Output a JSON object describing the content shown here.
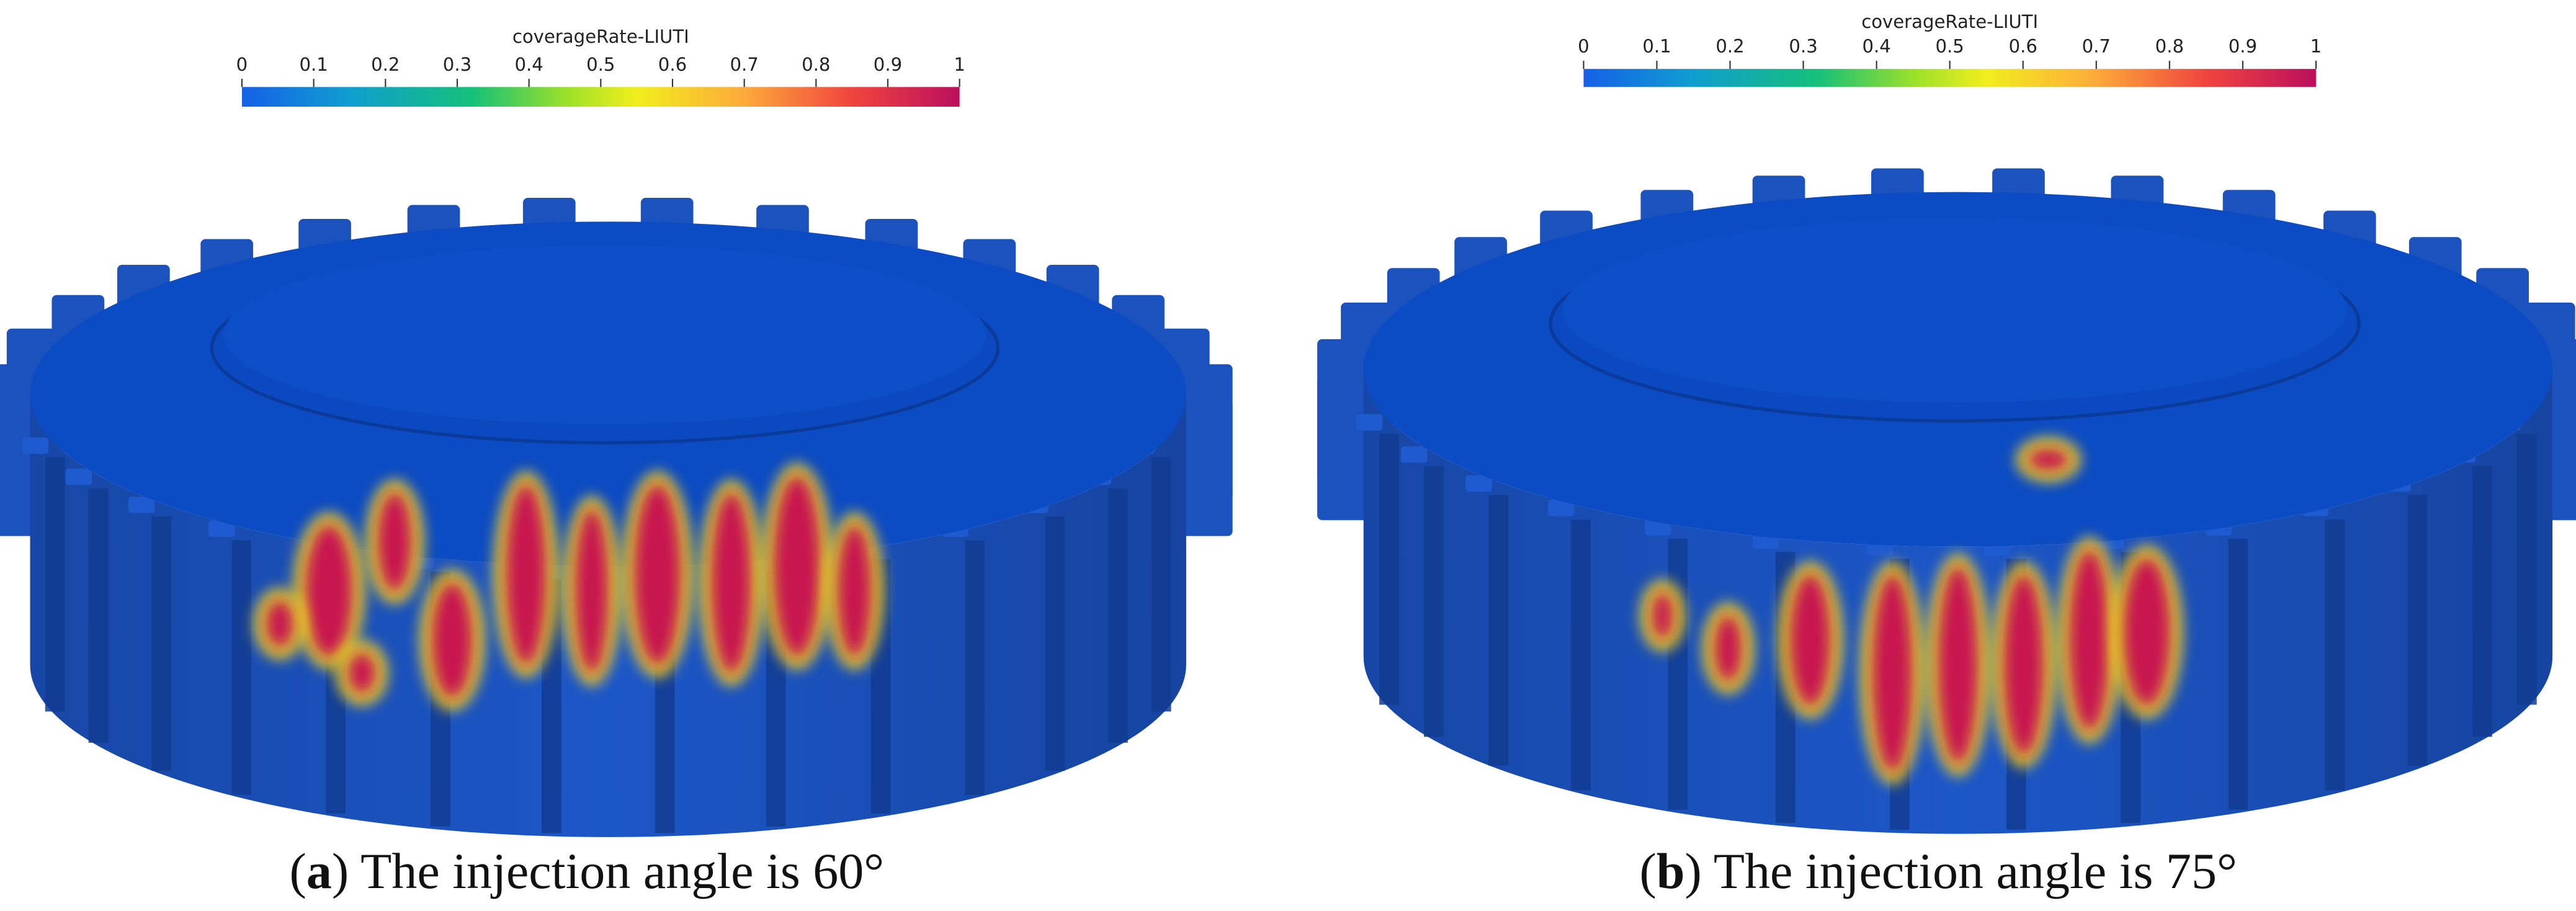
{
  "panels": [
    {
      "colorbar": {
        "title": "coverageRate-LIUTI",
        "ticks": [
          0,
          0.1,
          0.2,
          0.3,
          0.4,
          0.5,
          0.6,
          0.7,
          0.8,
          0.9,
          1
        ],
        "range": [
          0,
          1
        ]
      },
      "caption": {
        "prefix": "(",
        "label": "a",
        "text": ") The injection angle is 60°"
      }
    },
    {
      "colorbar": {
        "title": "coverageRate-LIUTI",
        "ticks": [
          0,
          0.1,
          0.2,
          0.3,
          0.4,
          0.5,
          0.6,
          0.7,
          0.8,
          0.9,
          1
        ],
        "range": [
          0,
          1
        ]
      },
      "caption": {
        "prefix": "(",
        "label": "b",
        "text": ") The injection angle is 75°"
      }
    }
  ]
}
